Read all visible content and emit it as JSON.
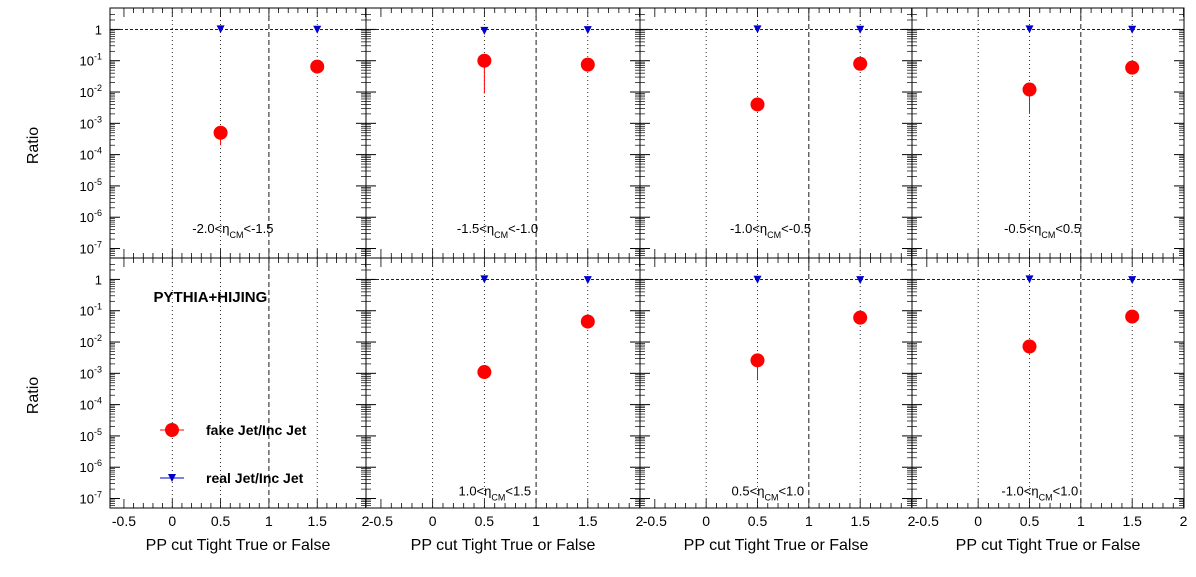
{
  "y_axis_label": "Ratio",
  "x_axis_label": "PP cut Tight True or False",
  "generator_label": "PYTHIA+HIJING",
  "legend": [
    {
      "label": "fake Jet/Inc Jet",
      "marker": "circle",
      "color": "#ff0000"
    },
    {
      "label": "real Jet/Inc Jet",
      "marker": "triangle-down",
      "color": "#0000cc"
    }
  ],
  "colors": {
    "fake": "#ff0000",
    "real": "#0000cc",
    "axis": "#000000"
  },
  "x_ticks": [
    "-0.5",
    "0",
    "0.5",
    "1",
    "1.5",
    "2"
  ],
  "y_ticks": [
    {
      "base": "1",
      "exp": ""
    },
    {
      "base": "10",
      "exp": "-1"
    },
    {
      "base": "10",
      "exp": "-2"
    },
    {
      "base": "10",
      "exp": "-3"
    },
    {
      "base": "10",
      "exp": "-4"
    },
    {
      "base": "10",
      "exp": "-5"
    },
    {
      "base": "10",
      "exp": "-6"
    },
    {
      "base": "10",
      "exp": "-7"
    }
  ],
  "chart_data": [
    {
      "type": "scatter",
      "panel": "top-1",
      "annotation": {
        "pre": "-2.0<η",
        "sub": "CM",
        "post": "<-1.5"
      },
      "xlim": [
        -0.7,
        2.0
      ],
      "ylim": [
        5e-08,
        4
      ],
      "log_y": true,
      "series": [
        {
          "name": "fake Jet/Inc Jet",
          "x": [
            0.5,
            1.5
          ],
          "y": [
            0.0005,
            0.065
          ],
          "yerr_low": [
            0.0003,
            0.01
          ],
          "yerr_high": [
            0.0001,
            0.01
          ]
        },
        {
          "name": "real Jet/Inc Jet",
          "x": [
            0.5,
            1.5
          ],
          "y": [
            1.0,
            0.98
          ]
        }
      ]
    },
    {
      "type": "scatter",
      "panel": "top-2",
      "annotation": {
        "pre": "-1.5<η",
        "sub": "CM",
        "post": "<-1.0"
      },
      "xlim": [
        -0.7,
        2.0
      ],
      "ylim": [
        5e-08,
        4
      ],
      "log_y": true,
      "series": [
        {
          "name": "fake Jet/Inc Jet",
          "x": [
            0.5,
            1.5
          ],
          "y": [
            0.1,
            0.075
          ],
          "yerr_low": [
            0.091,
            0.01
          ],
          "yerr_high": [
            0.02,
            0.01
          ]
        },
        {
          "name": "real Jet/Inc Jet",
          "x": [
            0.5,
            1.5
          ],
          "y": [
            0.9,
            0.95
          ]
        }
      ]
    },
    {
      "type": "scatter",
      "panel": "top-3",
      "annotation": {
        "pre": "-1.0<η",
        "sub": "CM",
        "post": "<-0.5"
      },
      "xlim": [
        -0.7,
        2.0
      ],
      "ylim": [
        5e-08,
        4
      ],
      "log_y": true,
      "series": [
        {
          "name": "fake Jet/Inc Jet",
          "x": [
            0.5,
            1.5
          ],
          "y": [
            0.004,
            0.08
          ],
          "yerr_low": [
            0.0015,
            0.01
          ],
          "yerr_high": [
            0.0005,
            0.01
          ]
        },
        {
          "name": "real Jet/Inc Jet",
          "x": [
            0.5,
            1.5
          ],
          "y": [
            1.0,
            0.98
          ]
        }
      ]
    },
    {
      "type": "scatter",
      "panel": "top-4",
      "annotation": {
        "pre": "-0.5<η",
        "sub": "CM",
        "post": "<0.5"
      },
      "xlim": [
        -0.7,
        2.0
      ],
      "ylim": [
        5e-08,
        4
      ],
      "log_y": true,
      "series": [
        {
          "name": "fake Jet/Inc Jet",
          "x": [
            0.5,
            1.5
          ],
          "y": [
            0.012,
            0.06
          ],
          "yerr_low": [
            0.01,
            0.01
          ],
          "yerr_high": [
            0.003,
            0.01
          ]
        },
        {
          "name": "real Jet/Inc Jet",
          "x": [
            0.5,
            1.5
          ],
          "y": [
            1.0,
            0.98
          ]
        }
      ]
    },
    {
      "type": "scatter",
      "panel": "bottom-1",
      "xlim": [
        -0.7,
        2.0
      ],
      "ylim": [
        5e-08,
        4
      ],
      "log_y": true,
      "series": []
    },
    {
      "type": "scatter",
      "panel": "bottom-2",
      "annotation": {
        "pre": "1.0<η",
        "sub": "CM",
        "post": "<1.5"
      },
      "xlim": [
        -0.7,
        2.0
      ],
      "ylim": [
        5e-08,
        4
      ],
      "log_y": true,
      "series": [
        {
          "name": "fake Jet/Inc Jet",
          "x": [
            0.5,
            1.5
          ],
          "y": [
            0.0011,
            0.045
          ],
          "yerr_low": [
            0.0003,
            0.01
          ],
          "yerr_high": [
            0.0002,
            0.01
          ]
        },
        {
          "name": "real Jet/Inc Jet",
          "x": [
            0.5,
            1.5
          ],
          "y": [
            1.0,
            0.95
          ]
        }
      ]
    },
    {
      "type": "scatter",
      "panel": "bottom-3",
      "annotation": {
        "pre": "0.5<η",
        "sub": "CM",
        "post": "<1.0"
      },
      "xlim": [
        -0.7,
        2.0
      ],
      "ylim": [
        5e-08,
        4
      ],
      "log_y": true,
      "series": [
        {
          "name": "fake Jet/Inc Jet",
          "x": [
            0.5,
            1.5
          ],
          "y": [
            0.0026,
            0.06
          ],
          "yerr_low": [
            0.002,
            0.01
          ],
          "yerr_high": [
            0.0005,
            0.01
          ]
        },
        {
          "name": "real Jet/Inc Jet",
          "x": [
            0.5,
            1.5
          ],
          "y": [
            0.98,
            0.95
          ]
        }
      ]
    },
    {
      "type": "scatter",
      "panel": "bottom-4",
      "annotation": {
        "pre": "-1.0<η",
        "sub": "CM",
        "post": "<1.0"
      },
      "xlim": [
        -0.7,
        2.0
      ],
      "ylim": [
        5e-08,
        4
      ],
      "log_y": true,
      "series": [
        {
          "name": "fake Jet/Inc Jet",
          "x": [
            0.5,
            1.5
          ],
          "y": [
            0.0072,
            0.065
          ],
          "yerr_low": [
            0.003,
            0.01
          ],
          "yerr_high": [
            0.001,
            0.01
          ]
        },
        {
          "name": "real Jet/Inc Jet",
          "x": [
            0.5,
            1.5
          ],
          "y": [
            1.0,
            0.95
          ]
        }
      ]
    }
  ]
}
